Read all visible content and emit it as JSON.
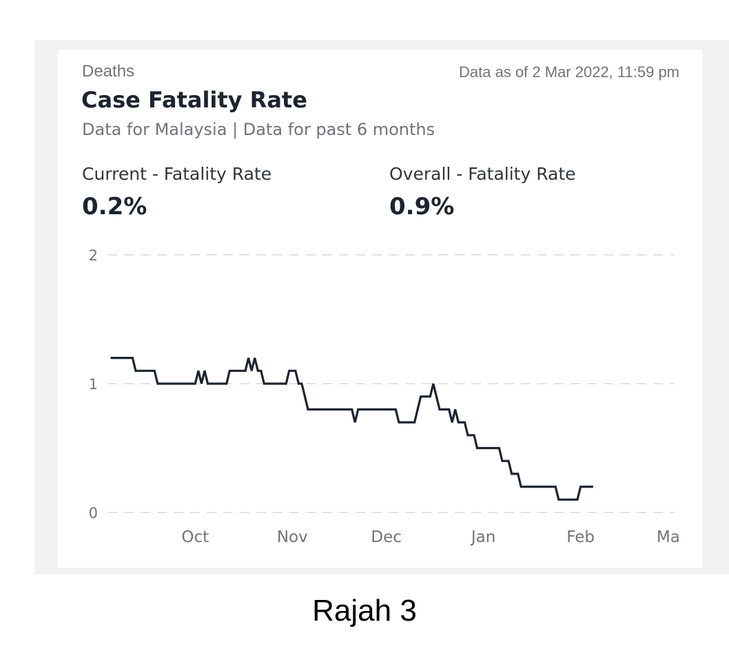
{
  "card": {
    "section_label": "Deaths",
    "timestamp": "Data as of 2 Mar 2022, 11:59 pm",
    "title": "Case Fatality Rate",
    "subtitle": "Data for Malaysia | Data for past 6 months"
  },
  "stats": {
    "current_label": "Current - Fatality Rate",
    "current_value": "0.2%",
    "overall_label": "Overall - Fatality Rate",
    "overall_value": "0.9%"
  },
  "caption": "Rajah 3",
  "colors": {
    "line": "#1d2430",
    "grid": "#d9d9d9",
    "axis_text": "#6f7479"
  },
  "chart_data": {
    "type": "line",
    "title": "Case Fatality Rate",
    "xlabel": "",
    "ylabel": "",
    "ylim": [
      0,
      2
    ],
    "yticks": [
      0,
      1,
      2
    ],
    "xticks": [
      {
        "date": "2021-10-01",
        "label": "Oct"
      },
      {
        "date": "2021-11-01",
        "label": "Nov"
      },
      {
        "date": "2021-12-01",
        "label": "Dec"
      },
      {
        "date": "2022-01-01",
        "label": "Jan"
      },
      {
        "date": "2022-02-01",
        "label": "Feb"
      },
      {
        "date": "2022-03-01",
        "label": "Ma"
      }
    ],
    "xlim": [
      "2021-09-03",
      "2022-03-03"
    ],
    "grid": true,
    "legend": "none",
    "series": [
      {
        "points": [
          [
            "2021-09-04",
            1.2
          ],
          [
            "2021-09-11",
            1.2
          ],
          [
            "2021-09-12",
            1.1
          ],
          [
            "2021-09-18",
            1.1
          ],
          [
            "2021-09-19",
            1.0
          ],
          [
            "2021-09-30",
            1.0
          ],
          [
            "2021-10-01",
            1.0
          ],
          [
            "2021-10-02",
            1.1
          ],
          [
            "2021-10-03",
            1.0
          ],
          [
            "2021-10-04",
            1.1
          ],
          [
            "2021-10-05",
            1.0
          ],
          [
            "2021-10-11",
            1.0
          ],
          [
            "2021-10-12",
            1.1
          ],
          [
            "2021-10-17",
            1.1
          ],
          [
            "2021-10-18",
            1.2
          ],
          [
            "2021-10-19",
            1.1
          ],
          [
            "2021-10-20",
            1.2
          ],
          [
            "2021-10-21",
            1.1
          ],
          [
            "2021-10-22",
            1.1
          ],
          [
            "2021-10-23",
            1.0
          ],
          [
            "2021-10-30",
            1.0
          ],
          [
            "2021-10-31",
            1.1
          ],
          [
            "2021-11-02",
            1.1
          ],
          [
            "2021-11-03",
            1.0
          ],
          [
            "2021-11-04",
            1.0
          ],
          [
            "2021-11-05",
            0.9
          ],
          [
            "2021-11-06",
            0.8
          ],
          [
            "2021-11-20",
            0.8
          ],
          [
            "2021-11-21",
            0.7
          ],
          [
            "2021-11-22",
            0.8
          ],
          [
            "2021-12-04",
            0.8
          ],
          [
            "2021-12-05",
            0.7
          ],
          [
            "2021-12-10",
            0.7
          ],
          [
            "2021-12-11",
            0.8
          ],
          [
            "2021-12-12",
            0.9
          ],
          [
            "2021-12-15",
            0.9
          ],
          [
            "2021-12-16",
            1.0
          ],
          [
            "2021-12-17",
            0.9
          ],
          [
            "2021-12-18",
            0.8
          ],
          [
            "2021-12-21",
            0.8
          ],
          [
            "2021-12-22",
            0.7
          ],
          [
            "2021-12-23",
            0.8
          ],
          [
            "2021-12-24",
            0.7
          ],
          [
            "2021-12-26",
            0.7
          ],
          [
            "2021-12-27",
            0.6
          ],
          [
            "2021-12-29",
            0.6
          ],
          [
            "2021-12-30",
            0.5
          ],
          [
            "2022-01-06",
            0.5
          ],
          [
            "2022-01-07",
            0.4
          ],
          [
            "2022-01-09",
            0.4
          ],
          [
            "2022-01-10",
            0.3
          ],
          [
            "2022-01-12",
            0.3
          ],
          [
            "2022-01-13",
            0.2
          ],
          [
            "2022-01-24",
            0.2
          ],
          [
            "2022-01-25",
            0.1
          ],
          [
            "2022-01-31",
            0.1
          ],
          [
            "2022-02-01",
            0.2
          ],
          [
            "2022-02-05",
            0.2
          ]
        ]
      }
    ]
  }
}
